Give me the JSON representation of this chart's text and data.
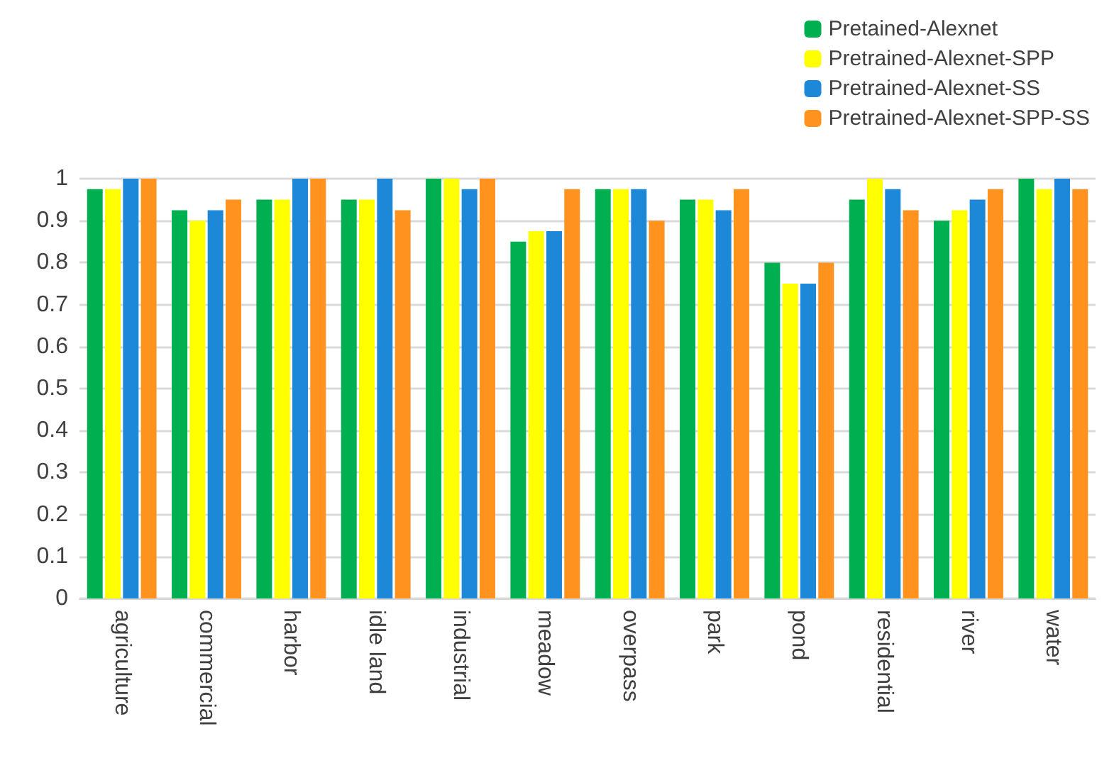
{
  "chart_data": {
    "type": "bar",
    "categories": [
      "agriculture",
      "commercial",
      "harbor",
      "idle land",
      "industrial",
      "meadow",
      "overpass",
      "park",
      "pond",
      "residential",
      "river",
      "water"
    ],
    "series": [
      {
        "name": "Pretained-Alexnet",
        "color": "#00b050",
        "values": [
          0.975,
          0.925,
          0.95,
          0.95,
          1,
          0.85,
          0.975,
          0.95,
          0.8,
          0.95,
          0.9,
          1
        ]
      },
      {
        "name": "Pretrained-Alexnet-SPP",
        "color": "#ffff00",
        "values": [
          0.975,
          0.9,
          0.95,
          0.95,
          1,
          0.875,
          0.975,
          0.95,
          0.75,
          1,
          0.925,
          0.975
        ]
      },
      {
        "name": "Pretrained-Alexnet-SS",
        "color": "#1e88d8",
        "values": [
          1,
          0.925,
          1,
          1,
          0.975,
          0.875,
          0.975,
          0.925,
          0.75,
          0.975,
          0.95,
          1
        ]
      },
      {
        "name": "Pretrained-Alexnet-SPP-SS",
        "color": "#ff931e",
        "values": [
          1,
          0.95,
          1,
          0.925,
          1,
          0.975,
          0.9,
          0.975,
          0.8,
          0.925,
          0.975,
          0.975
        ]
      }
    ],
    "ylim": [
      0,
      1
    ],
    "yticks": [
      0,
      0.1,
      0.2,
      0.3,
      0.4,
      0.5,
      0.6,
      0.7,
      0.8,
      0.9,
      1
    ],
    "grid": "y",
    "legend": "top right"
  }
}
